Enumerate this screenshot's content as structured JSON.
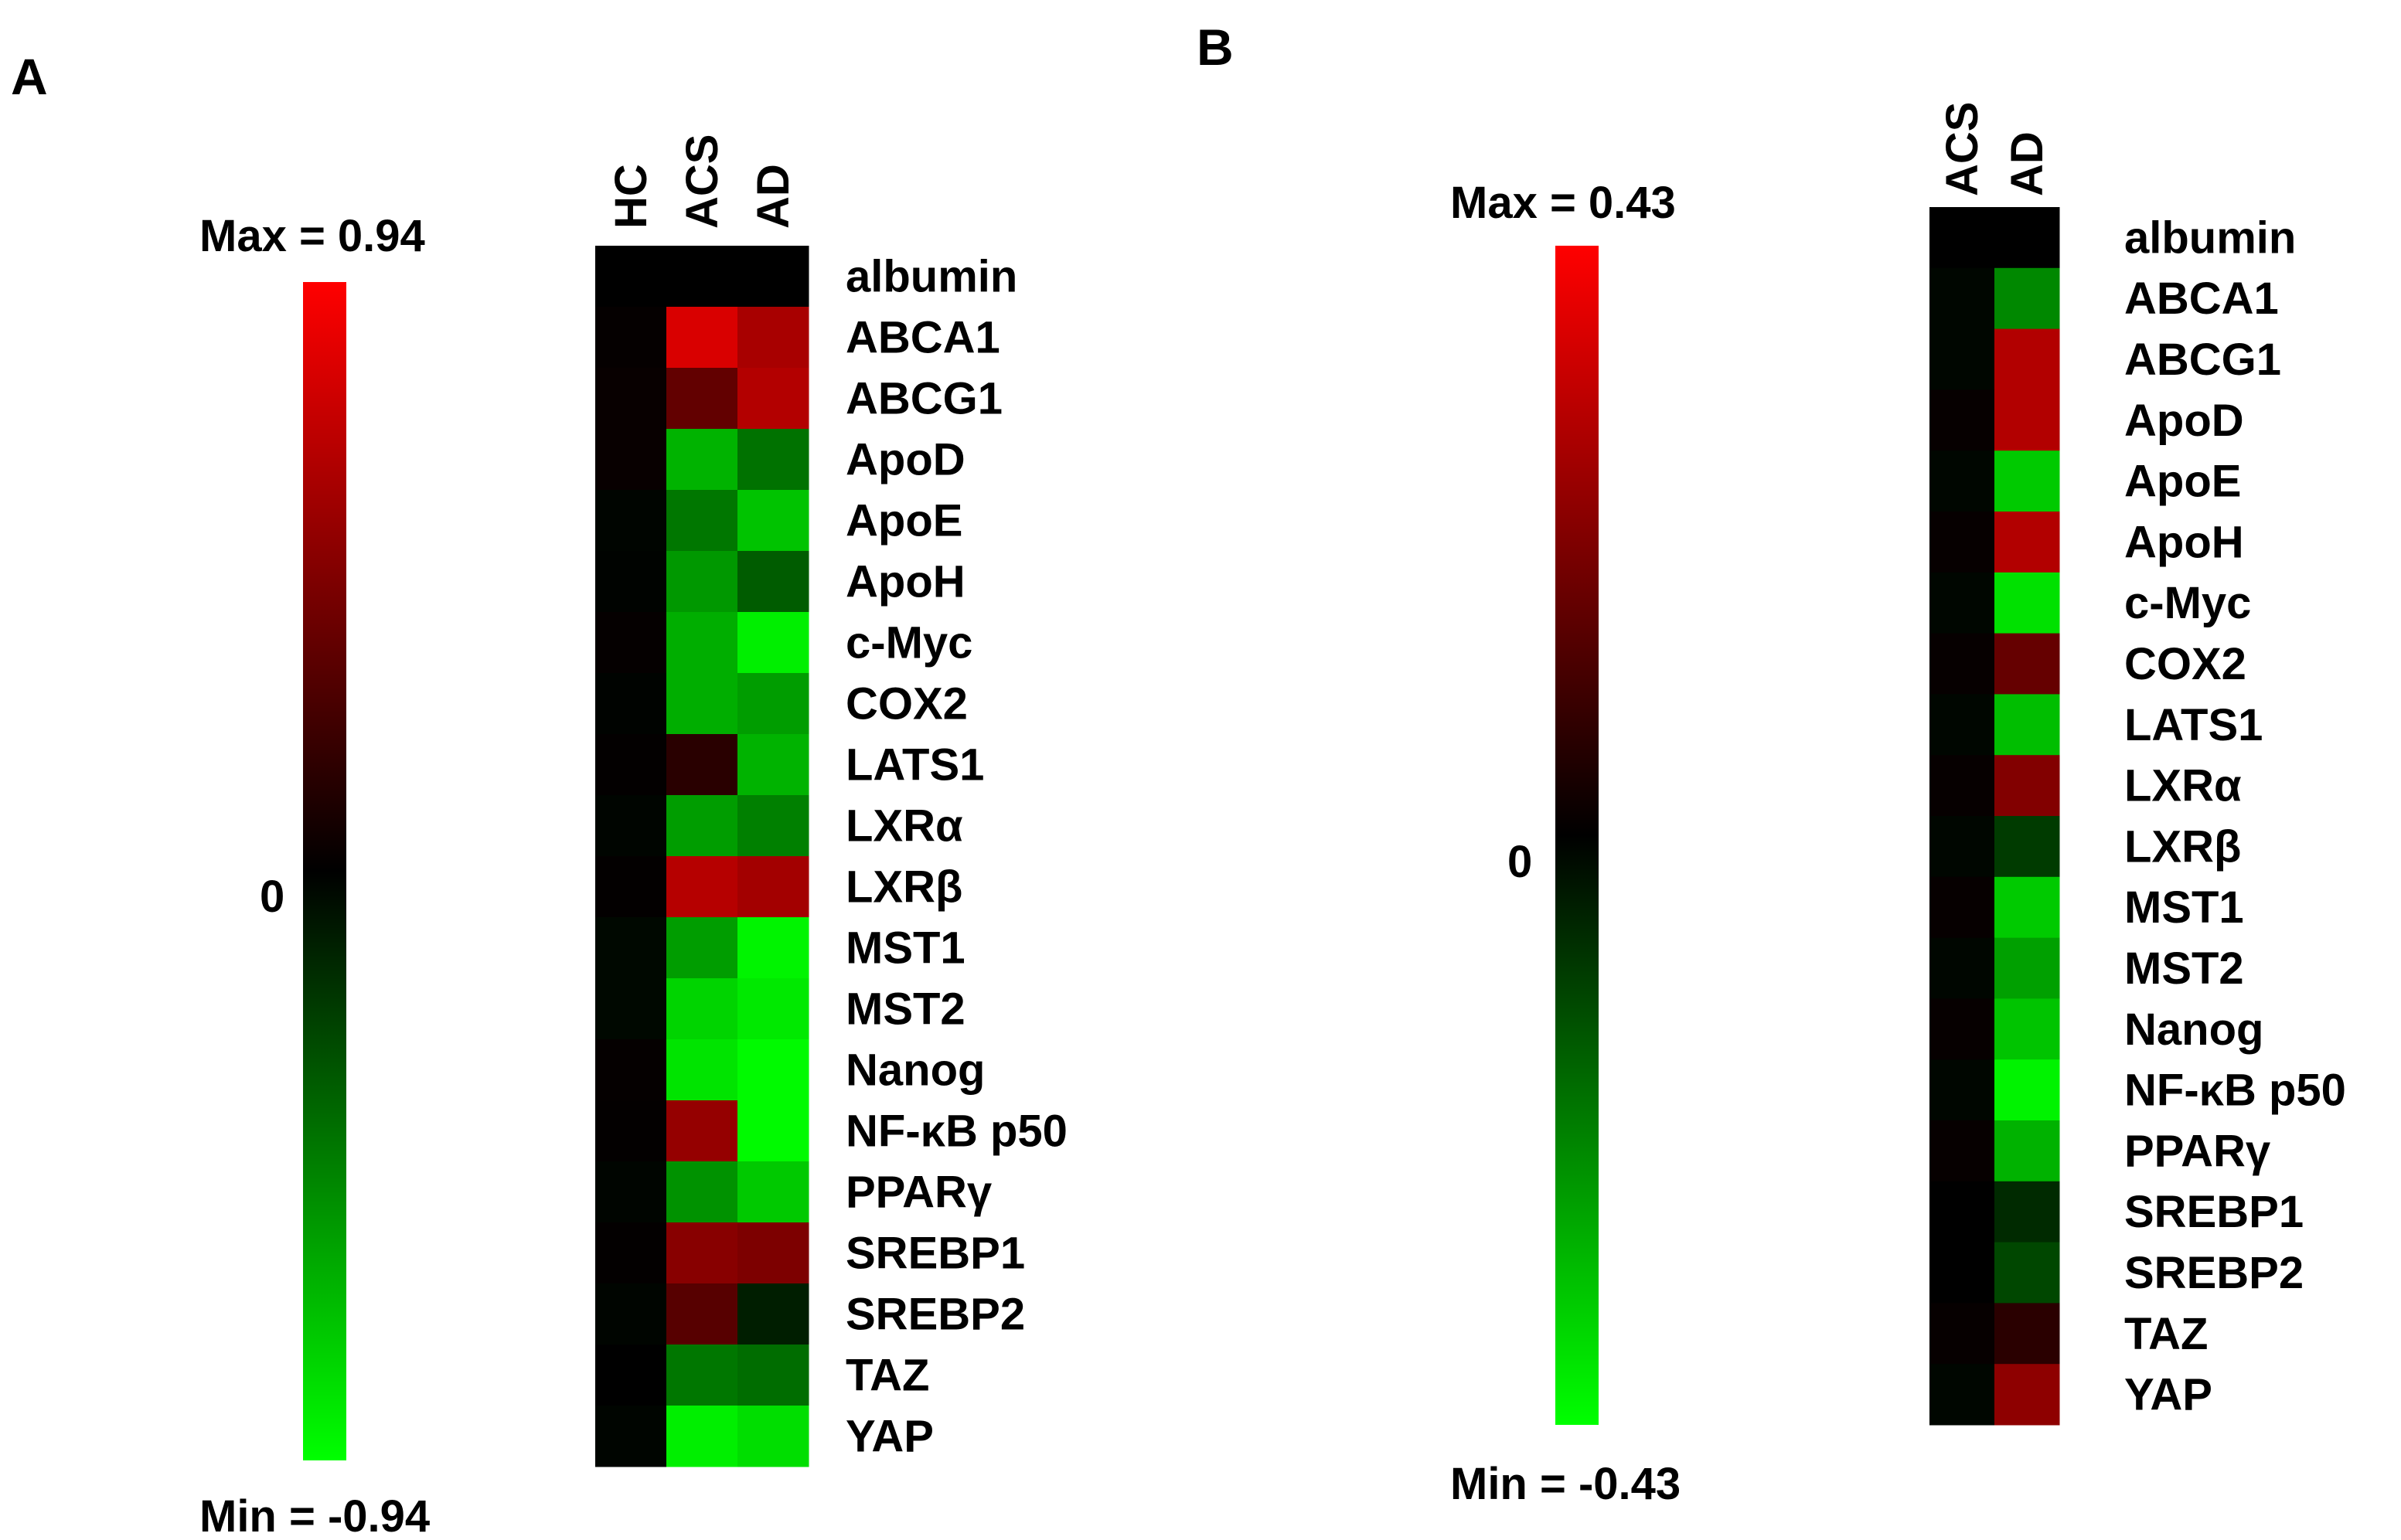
{
  "chart_data": [
    {
      "type": "heatmap",
      "panel": "A",
      "columns": [
        "HC",
        "ACS",
        "AD"
      ],
      "rows": [
        "albumin",
        "ABCA1",
        "ABCG1",
        "ApoD",
        "ApoE",
        "ApoH",
        "c-Myc",
        "COX2",
        "LATS1",
        "LXRα",
        "LXRβ",
        "MST1",
        "MST2",
        "Nanog",
        "NF-κB p50",
        "PPARγ",
        "SREBP1",
        "SREBP2",
        "TAZ",
        "YAP"
      ],
      "values": [
        [
          0.0,
          0.0,
          0.0
        ],
        [
          0.02,
          0.8,
          0.62
        ],
        [
          0.03,
          0.36,
          0.66
        ],
        [
          0.03,
          -0.66,
          -0.42
        ],
        [
          -0.02,
          -0.44,
          -0.72
        ],
        [
          -0.01,
          -0.56,
          -0.34
        ],
        [
          0.02,
          -0.64,
          -0.88
        ],
        [
          -0.01,
          -0.64,
          -0.58
        ],
        [
          0.01,
          0.15,
          -0.66
        ],
        [
          -0.02,
          -0.58,
          -0.47
        ],
        [
          0.01,
          0.67,
          0.6
        ],
        [
          -0.03,
          -0.58,
          -0.9
        ],
        [
          -0.03,
          -0.78,
          -0.86
        ],
        [
          0.02,
          -0.84,
          -0.92
        ],
        [
          0.01,
          0.55,
          -0.92
        ],
        [
          -0.02,
          -0.54,
          -0.74
        ],
        [
          0.01,
          0.5,
          0.46
        ],
        [
          -0.02,
          0.32,
          -0.11
        ],
        [
          0.0,
          -0.44,
          -0.4
        ],
        [
          -0.02,
          -0.88,
          -0.82
        ]
      ],
      "scale": {
        "max_label": "Max = 0.94",
        "zero_label": "0",
        "min_label": "Min = -0.94",
        "max": 0.94,
        "min": -0.94
      }
    },
    {
      "type": "heatmap",
      "panel": "B",
      "columns": [
        "ACS",
        "AD"
      ],
      "rows": [
        "albumin",
        "ABCA1",
        "ABCG1",
        "ApoD",
        "ApoE",
        "ApoH",
        "c-Myc",
        "COX2",
        "LATS1",
        "LXRα",
        "LXRβ",
        "MST1",
        "MST2",
        "Nanog",
        "NF-κB p50",
        "PPARγ",
        "SREBP1",
        "SREBP2",
        "TAZ",
        "YAP"
      ],
      "values": [
        [
          0.0,
          0.0
        ],
        [
          -0.01,
          -0.23
        ],
        [
          -0.01,
          0.3
        ],
        [
          0.01,
          0.3
        ],
        [
          -0.01,
          -0.34
        ],
        [
          0.01,
          0.3
        ],
        [
          -0.01,
          -0.38
        ],
        [
          0.01,
          0.17
        ],
        [
          -0.01,
          -0.32
        ],
        [
          0.01,
          0.22
        ],
        [
          -0.01,
          -0.1
        ],
        [
          0.01,
          -0.34
        ],
        [
          -0.01,
          -0.27
        ],
        [
          0.01,
          -0.33
        ],
        [
          -0.01,
          -0.41
        ],
        [
          0.01,
          -0.3
        ],
        [
          0.0,
          -0.07
        ],
        [
          0.0,
          -0.12
        ],
        [
          0.01,
          0.07
        ],
        [
          -0.01,
          0.24
        ]
      ],
      "scale": {
        "max_label": "Max = 0.43",
        "zero_label": "0",
        "min_label": "Min = -0.43",
        "max": 0.43,
        "min": -0.43
      }
    }
  ],
  "colors": {
    "positive": "#ff0000",
    "neutral": "#000000",
    "negative": "#00ff00"
  }
}
